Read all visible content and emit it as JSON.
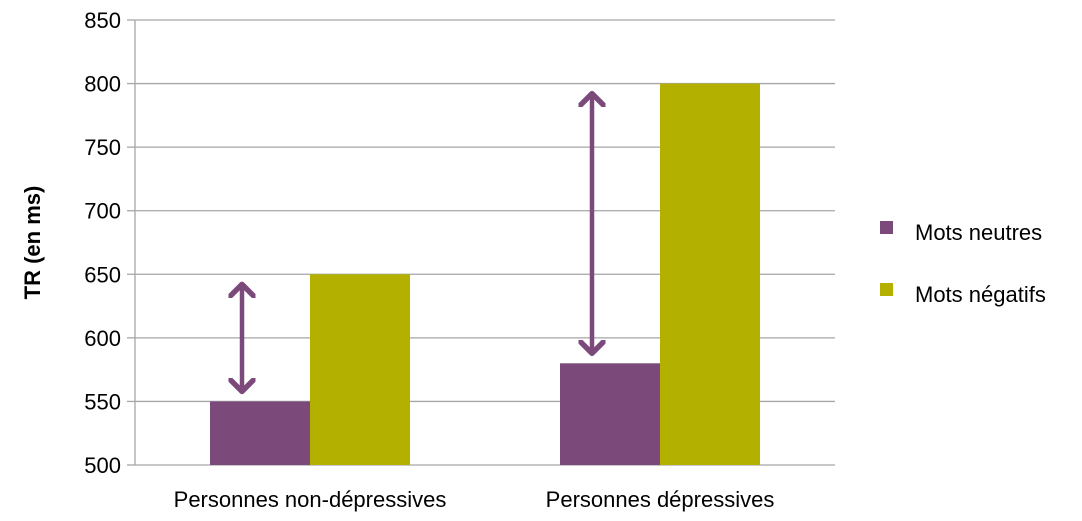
{
  "chart_data": {
    "type": "bar",
    "categories": [
      "Personnes non-dépressives",
      "Personnes dépressives"
    ],
    "series": [
      {
        "name": "Mots neutres",
        "values": [
          550,
          580
        ],
        "color": "#7b4a7b"
      },
      {
        "name": "Mots négatifs",
        "values": [
          650,
          800
        ],
        "color": "#b3b000"
      }
    ],
    "xlabel": "",
    "ylabel": "TR (en ms)",
    "ylim": [
      500,
      850
    ],
    "yticks": [
      500,
      550,
      600,
      650,
      700,
      750,
      800,
      850
    ],
    "grid": true,
    "legend": "right",
    "annotations": [
      {
        "type": "double-arrow",
        "category": 0,
        "from": 550,
        "to": 650,
        "color": "#7b4a7b"
      },
      {
        "type": "double-arrow",
        "category": 1,
        "from": 580,
        "to": 800,
        "color": "#7b4a7b"
      }
    ]
  }
}
